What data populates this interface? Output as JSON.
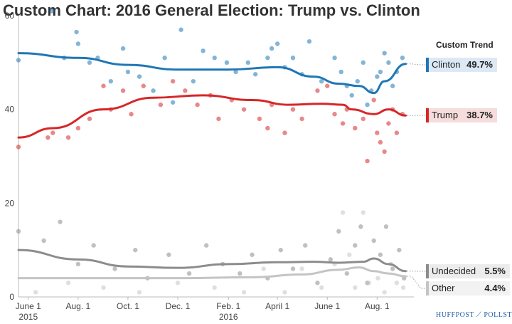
{
  "title": "Custom Chart: 2016 General Election: Trump vs. Clinton",
  "trend_heading": "Custom Trend",
  "brand": {
    "left": "HUFFPOST",
    "right": "POLLSTER"
  },
  "legend": [
    {
      "name": "Clinton",
      "value": "49.7%",
      "color": "#1f77b4",
      "bg": "#dce9f5"
    },
    {
      "name": "Trump",
      "value": "38.7%",
      "color": "#d62728",
      "bg": "#f7dcdc"
    },
    {
      "name": "Undecided",
      "value": "5.5%",
      "color": "#8c8c8c",
      "bg": "#ececec"
    },
    {
      "name": "Other",
      "value": "4.4%",
      "color": "#c4c4c4",
      "bg": "#f2f2f2"
    }
  ],
  "chart_data": {
    "type": "scatter",
    "title": "Custom Chart: 2016 General Election: Trump vs. Clinton",
    "ylim": [
      0,
      60
    ],
    "yticks": [
      0,
      20,
      40,
      60
    ],
    "xlim": [
      "2015-05-20",
      "2016-09-15"
    ],
    "xticks": [
      {
        "date": "2015-06-01",
        "label": "June 1",
        "sub": "2015"
      },
      {
        "date": "2015-08-01",
        "label": "Aug. 1",
        "sub": ""
      },
      {
        "date": "2015-10-01",
        "label": "Oct. 1",
        "sub": ""
      },
      {
        "date": "2015-12-01",
        "label": "Dec. 1",
        "sub": ""
      },
      {
        "date": "2016-02-01",
        "label": "Feb. 1",
        "sub": "2016"
      },
      {
        "date": "2016-04-01",
        "label": "April 1",
        "sub": ""
      },
      {
        "date": "2016-06-01",
        "label": "June 1",
        "sub": ""
      },
      {
        "date": "2016-08-01",
        "label": "Aug. 1",
        "sub": ""
      }
    ],
    "grid": false,
    "series": [
      {
        "name": "Clinton",
        "color": "#1f77b4",
        "trend": [
          [
            "2015-05-20",
            52
          ],
          [
            "2015-08-01",
            51
          ],
          [
            "2015-10-01",
            49.5
          ],
          [
            "2015-12-01",
            48.5
          ],
          [
            "2016-02-01",
            48.5
          ],
          [
            "2016-04-01",
            49
          ],
          [
            "2016-05-15",
            47
          ],
          [
            "2016-06-15",
            45.5
          ],
          [
            "2016-07-10",
            45
          ],
          [
            "2016-07-28",
            43.5
          ],
          [
            "2016-08-10",
            46
          ],
          [
            "2016-09-05",
            49.7
          ]
        ],
        "points": [
          [
            "2015-05-20",
            50.5
          ],
          [
            "2015-06-30",
            61
          ],
          [
            "2015-07-15",
            51
          ],
          [
            "2015-07-30",
            56.5
          ],
          [
            "2015-08-01",
            54
          ],
          [
            "2015-08-15",
            50
          ],
          [
            "2015-08-25",
            51
          ],
          [
            "2015-09-10",
            46
          ],
          [
            "2015-09-25",
            53
          ],
          [
            "2015-10-01",
            48
          ],
          [
            "2015-10-15",
            47
          ],
          [
            "2015-11-01",
            44
          ],
          [
            "2015-11-15",
            51
          ],
          [
            "2015-11-25",
            41.5
          ],
          [
            "2015-12-05",
            57
          ],
          [
            "2015-12-20",
            46
          ],
          [
            "2016-01-01",
            52.5
          ],
          [
            "2016-01-15",
            51
          ],
          [
            "2016-01-30",
            50
          ],
          [
            "2016-02-10",
            48
          ],
          [
            "2016-02-25",
            50
          ],
          [
            "2016-03-05",
            47.5
          ],
          [
            "2016-03-20",
            51
          ],
          [
            "2016-03-25",
            53
          ],
          [
            "2016-04-01",
            54
          ],
          [
            "2016-04-10",
            49
          ],
          [
            "2016-04-20",
            51
          ],
          [
            "2016-05-01",
            47.5
          ],
          [
            "2016-05-10",
            54.5
          ],
          [
            "2016-05-25",
            46
          ],
          [
            "2016-06-10",
            51
          ],
          [
            "2016-06-18",
            48
          ],
          [
            "2016-06-25",
            45
          ],
          [
            "2016-07-01",
            43
          ],
          [
            "2016-07-08",
            46
          ],
          [
            "2016-07-15",
            50
          ],
          [
            "2016-07-20",
            41
          ],
          [
            "2016-07-25",
            44
          ],
          [
            "2016-08-01",
            47
          ],
          [
            "2016-08-05",
            48
          ],
          [
            "2016-08-10",
            52
          ],
          [
            "2016-08-15",
            50
          ],
          [
            "2016-08-20",
            45
          ],
          [
            "2016-08-25",
            48
          ],
          [
            "2016-09-01",
            51
          ]
        ]
      },
      {
        "name": "Trump",
        "color": "#d62728",
        "trend": [
          [
            "2015-05-20",
            34
          ],
          [
            "2015-07-01",
            36
          ],
          [
            "2015-09-01",
            40
          ],
          [
            "2015-11-01",
            42.5
          ],
          [
            "2016-01-01",
            43
          ],
          [
            "2016-03-01",
            42
          ],
          [
            "2016-04-15",
            41
          ],
          [
            "2016-05-25",
            41.2
          ],
          [
            "2016-06-20",
            41
          ],
          [
            "2016-07-01",
            40
          ],
          [
            "2016-07-28",
            39
          ],
          [
            "2016-08-15",
            40
          ],
          [
            "2016-09-05",
            38.7
          ]
        ],
        "points": [
          [
            "2015-05-20",
            32
          ],
          [
            "2015-06-25",
            34
          ],
          [
            "2015-07-01",
            35
          ],
          [
            "2015-07-20",
            34
          ],
          [
            "2015-08-01",
            36
          ],
          [
            "2015-08-15",
            38
          ],
          [
            "2015-09-01",
            45
          ],
          [
            "2015-09-10",
            40
          ],
          [
            "2015-09-25",
            44
          ],
          [
            "2015-10-05",
            39
          ],
          [
            "2015-10-20",
            45
          ],
          [
            "2015-11-10",
            41
          ],
          [
            "2015-11-25",
            46
          ],
          [
            "2015-12-10",
            44
          ],
          [
            "2015-12-25",
            41
          ],
          [
            "2016-01-10",
            43
          ],
          [
            "2016-01-20",
            38
          ],
          [
            "2016-02-05",
            42
          ],
          [
            "2016-02-20",
            40
          ],
          [
            "2016-03-10",
            38
          ],
          [
            "2016-03-20",
            36
          ],
          [
            "2016-03-25",
            41
          ],
          [
            "2016-04-10",
            35
          ],
          [
            "2016-04-20",
            40
          ],
          [
            "2016-05-01",
            38
          ],
          [
            "2016-05-20",
            44
          ],
          [
            "2016-06-01",
            45
          ],
          [
            "2016-06-10",
            39
          ],
          [
            "2016-06-20",
            37
          ],
          [
            "2016-06-25",
            40
          ],
          [
            "2016-07-05",
            36
          ],
          [
            "2016-07-15",
            38
          ],
          [
            "2016-07-20",
            29
          ],
          [
            "2016-07-28",
            42
          ],
          [
            "2016-08-01",
            35
          ],
          [
            "2016-08-05",
            33
          ],
          [
            "2016-08-10",
            31
          ],
          [
            "2016-08-15",
            37
          ],
          [
            "2016-08-20",
            40
          ],
          [
            "2016-08-25",
            35
          ],
          [
            "2016-09-01",
            39
          ]
        ]
      },
      {
        "name": "Undecided",
        "color": "#8c8c8c",
        "trend": [
          [
            "2015-05-20",
            10
          ],
          [
            "2015-08-01",
            8
          ],
          [
            "2015-10-01",
            6.5
          ],
          [
            "2015-12-01",
            6.2
          ],
          [
            "2016-02-01",
            7
          ],
          [
            "2016-04-01",
            7.4
          ],
          [
            "2016-05-15",
            7.5
          ],
          [
            "2016-06-15",
            7.3
          ],
          [
            "2016-07-15",
            7.5
          ],
          [
            "2016-07-28",
            8.2
          ],
          [
            "2016-08-15",
            7
          ],
          [
            "2016-09-05",
            5.5
          ]
        ],
        "points": [
          [
            "2015-05-20",
            14
          ],
          [
            "2015-06-20",
            12
          ],
          [
            "2015-07-10",
            16
          ],
          [
            "2015-08-01",
            7
          ],
          [
            "2015-08-20",
            11
          ],
          [
            "2015-09-15",
            6
          ],
          [
            "2015-10-10",
            10
          ],
          [
            "2015-10-25",
            4
          ],
          [
            "2015-11-20",
            9
          ],
          [
            "2015-12-15",
            5
          ],
          [
            "2016-01-05",
            11
          ],
          [
            "2016-01-25",
            7
          ],
          [
            "2016-02-15",
            5
          ],
          [
            "2016-03-01",
            9
          ],
          [
            "2016-03-20",
            4
          ],
          [
            "2016-04-05",
            10
          ],
          [
            "2016-04-20",
            6
          ],
          [
            "2016-05-05",
            11
          ],
          [
            "2016-05-20",
            3
          ],
          [
            "2016-06-05",
            8
          ],
          [
            "2016-06-15",
            14
          ],
          [
            "2016-06-25",
            5
          ],
          [
            "2016-07-05",
            11
          ],
          [
            "2016-07-12",
            15
          ],
          [
            "2016-07-20",
            3
          ],
          [
            "2016-07-28",
            12
          ],
          [
            "2016-08-05",
            9
          ],
          [
            "2016-08-12",
            15
          ],
          [
            "2016-08-20",
            6
          ],
          [
            "2016-08-28",
            10
          ],
          [
            "2016-09-03",
            4
          ]
        ]
      },
      {
        "name": "Other",
        "color": "#c4c4c4",
        "trend": [
          [
            "2015-05-20",
            4
          ],
          [
            "2015-09-01",
            4
          ],
          [
            "2015-12-01",
            4
          ],
          [
            "2016-03-01",
            4.2
          ],
          [
            "2016-05-01",
            4.8
          ],
          [
            "2016-06-15",
            5.8
          ],
          [
            "2016-07-10",
            6.3
          ],
          [
            "2016-07-28",
            5.5
          ],
          [
            "2016-08-15",
            5
          ],
          [
            "2016-09-05",
            4.4
          ]
        ],
        "points": [
          [
            "2015-06-10",
            1
          ],
          [
            "2015-07-20",
            3
          ],
          [
            "2015-09-01",
            2
          ],
          [
            "2015-10-15",
            1
          ],
          [
            "2015-12-01",
            3
          ],
          [
            "2016-01-15",
            2
          ],
          [
            "2016-02-20",
            1
          ],
          [
            "2016-03-15",
            6
          ],
          [
            "2016-04-10",
            1
          ],
          [
            "2016-05-01",
            6
          ],
          [
            "2016-05-25",
            2
          ],
          [
            "2016-06-10",
            7
          ],
          [
            "2016-06-20",
            18
          ],
          [
            "2016-06-28",
            9
          ],
          [
            "2016-07-05",
            2
          ],
          [
            "2016-07-15",
            18
          ],
          [
            "2016-07-22",
            3
          ],
          [
            "2016-08-02",
            4
          ],
          [
            "2016-08-10",
            1
          ],
          [
            "2016-08-18",
            7
          ],
          [
            "2016-08-25",
            3
          ],
          [
            "2016-09-02",
            2
          ]
        ]
      }
    ]
  }
}
